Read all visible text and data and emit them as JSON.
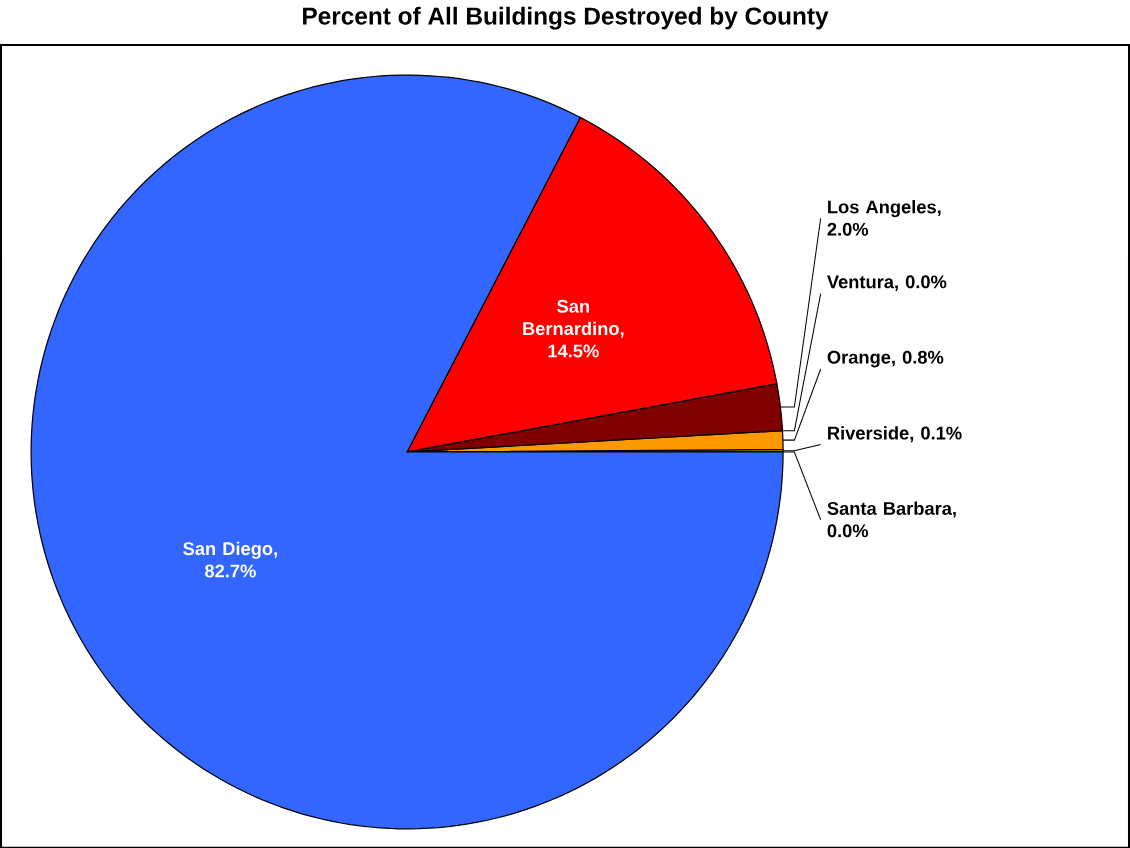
{
  "chart_data": {
    "type": "pie",
    "title": "Percent of All Buildings Destroyed by County",
    "categories": [
      "Santa Barbara",
      "Riverside",
      "Orange",
      "Ventura",
      "Los Angeles",
      "San Bernardino",
      "San Diego"
    ],
    "values": [
      0.0,
      0.1,
      0.8,
      0.0,
      2.0,
      14.5,
      82.7
    ],
    "value_labels": [
      ", 0.0%",
      ", 0.1%",
      ", 0.8%",
      ", 0.0%",
      ", 2.0%",
      ", 14.5%",
      ", 82.7%"
    ],
    "colors": [
      "#ffff66",
      "#ffcc00",
      "#ff9900",
      "#cc3300",
      "#800000",
      "#ff0000",
      "#3366ff"
    ]
  }
}
